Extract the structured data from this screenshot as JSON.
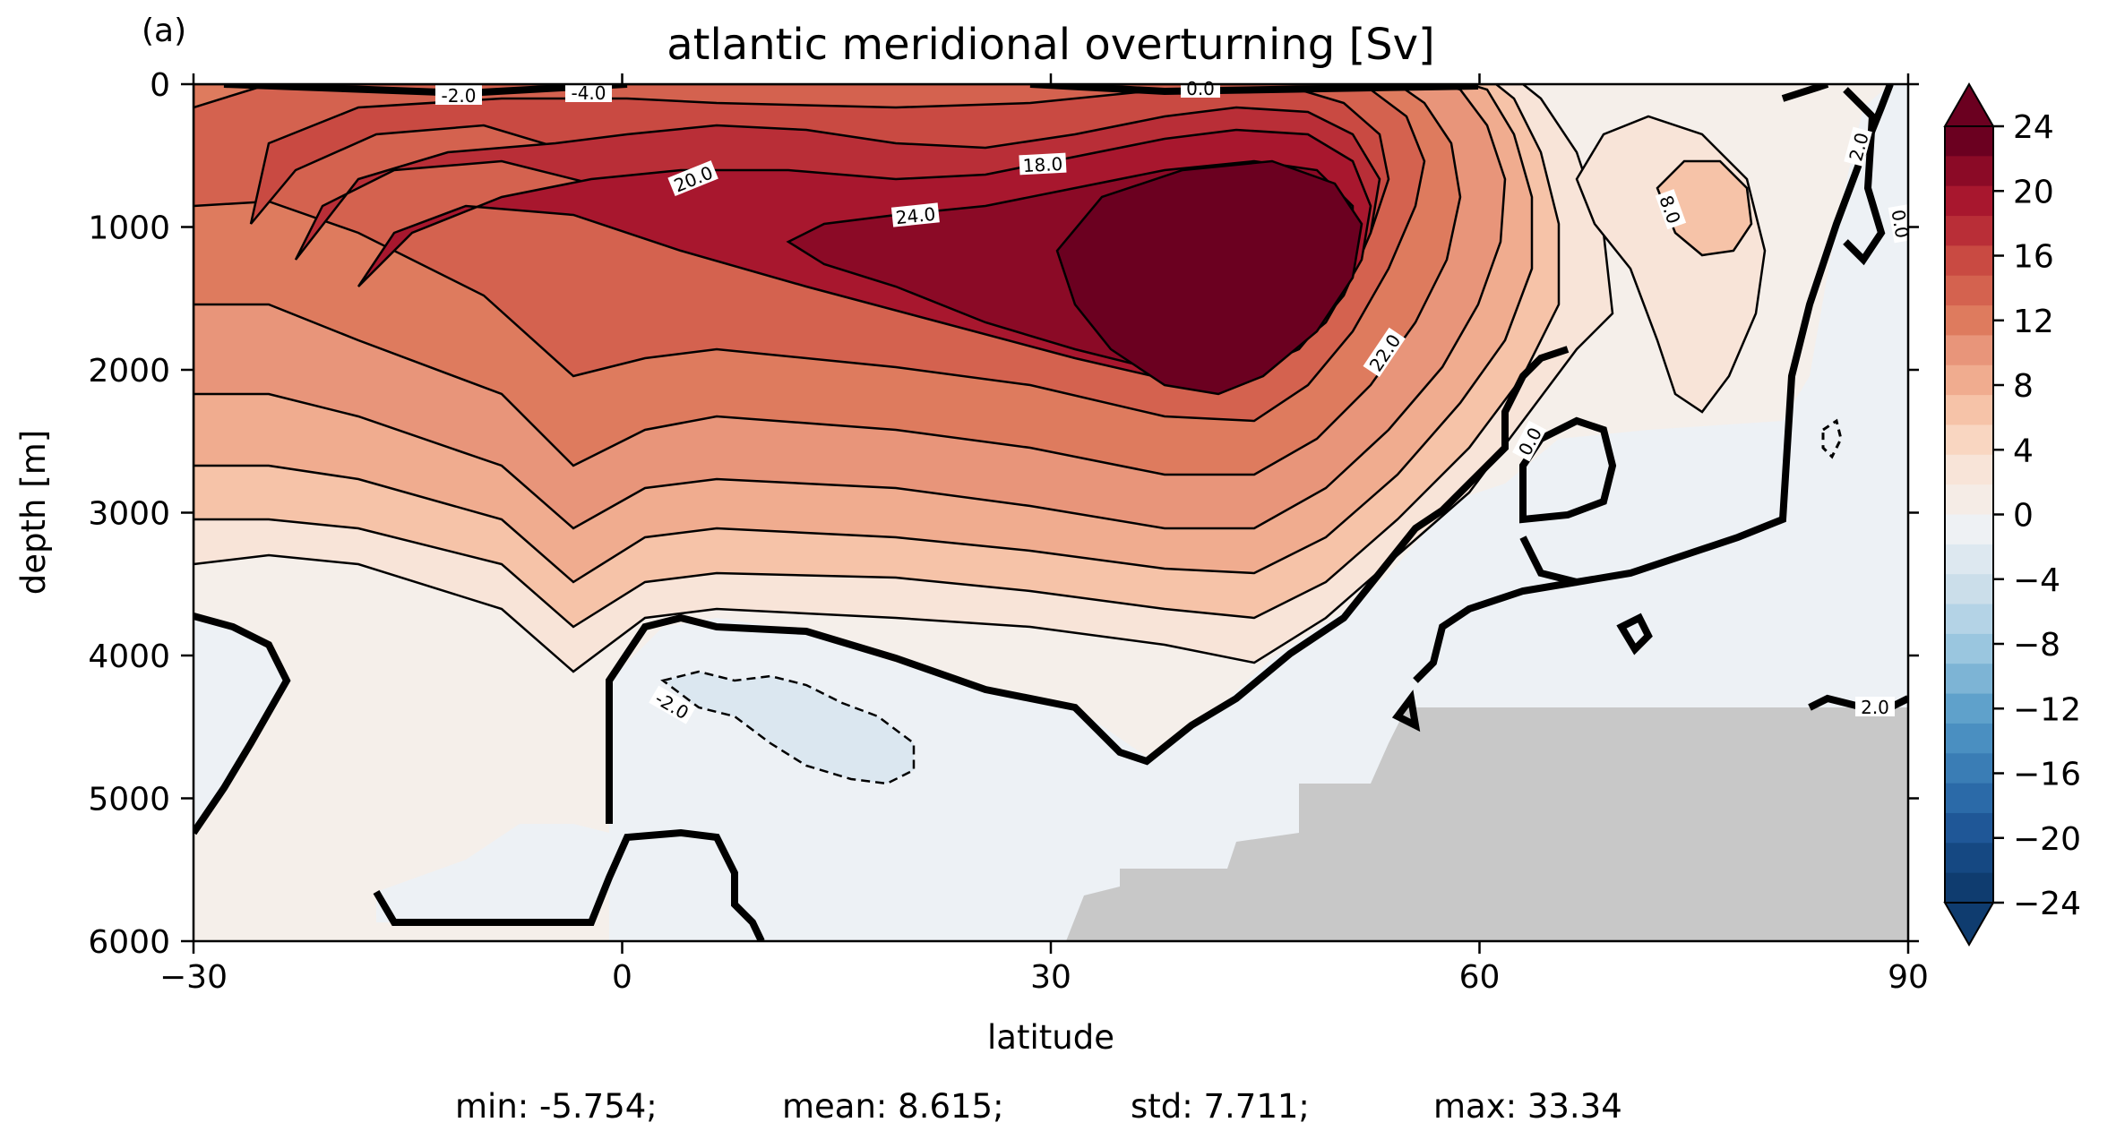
{
  "panel_label": "(a)",
  "title": "atlantic meridional overturning [Sv]",
  "xlabel": "latitude",
  "ylabel": "depth [m]",
  "stats": {
    "min": "min: -5.754;",
    "mean": "mean: 8.615;",
    "std": "std: 7.711;",
    "max": "max: 33.34"
  },
  "chart_data": {
    "type": "heatmap",
    "subtype": "filled contour (meridional streamfunction)",
    "x_range": [
      -30,
      90
    ],
    "y_range_depth_m": [
      0,
      6000
    ],
    "y_inverted": true,
    "x_ticks": [
      "−30",
      "0",
      "30",
      "60",
      "90"
    ],
    "x_tick_values": [
      -30,
      0,
      30,
      60,
      90
    ],
    "y_ticks": [
      "0",
      "1000",
      "2000",
      "3000",
      "4000",
      "5000",
      "6000"
    ],
    "y_tick_values": [
      0,
      1000,
      2000,
      3000,
      4000,
      5000,
      6000
    ],
    "colorbar": {
      "ticks": [
        "24",
        "20",
        "16",
        "12",
        "8",
        "4",
        "0",
        "−4",
        "−8",
        "−12",
        "−16",
        "−20",
        "−24"
      ],
      "tick_values": [
        24,
        20,
        16,
        12,
        8,
        4,
        0,
        -4,
        -8,
        -12,
        -16,
        -20,
        -24
      ],
      "extend": "both",
      "cmap": "RdBu_r",
      "colors_top_to_bottom": [
        "#6b0020",
        "#8b0a26",
        "#a8172e",
        "#b92e37",
        "#c94a42",
        "#d4624f",
        "#de7b5e",
        "#e8957a",
        "#f0ac8f",
        "#f6c3a8",
        "#f9d6c1",
        "#f8e4d8",
        "#f5ece6",
        "#eef1f4",
        "#dde8f0",
        "#cbdeea",
        "#b4d3e6",
        "#9ac6df",
        "#7db4d5",
        "#5fa1cb",
        "#4a8fc1",
        "#3a7db5",
        "#2b6aa8",
        "#1f5797",
        "#154882",
        "#0f3c6f"
      ]
    },
    "contour_labels": [
      "-2.0",
      "-4.0",
      "0.0",
      "20.0",
      "18.0",
      "24.0",
      "22.0",
      "8.0",
      "2.0",
      "0.0",
      "0.0",
      "-2.0",
      "2.0"
    ],
    "features": {
      "max_cell_center_lat": 45,
      "max_cell_center_depth_m": 1300,
      "max_cell_min_value_sv": 24,
      "bathymetry_fill": "#c8c8c8"
    }
  }
}
